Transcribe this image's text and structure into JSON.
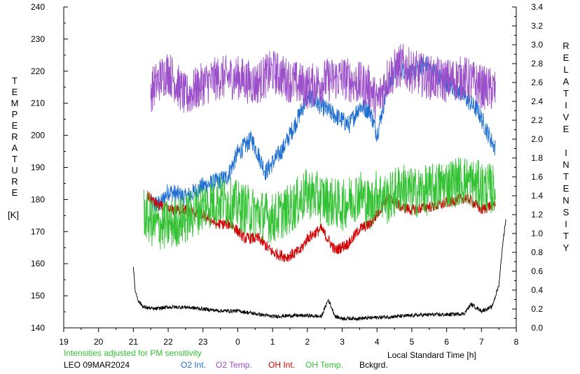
{
  "chart_data": {
    "type": "line",
    "title": "",
    "ylabel_left": "TEMPERATURE",
    "ylabel_left_unit": "[K]",
    "ylabel_right": "RELATIVE INTENSITY",
    "xlabel": "Local Standard Time [h]",
    "note": "Intensities adjusted for PM sensitivity",
    "station_date": "LEO 09MAR2024",
    "x_ticks": [
      "19",
      "20",
      "21",
      "22",
      "23",
      "0",
      "1",
      "2",
      "3",
      "4",
      "5",
      "6",
      "7",
      "8"
    ],
    "xlim": [
      19,
      32
    ],
    "ylim_left": [
      140,
      240
    ],
    "ylim_right": [
      0,
      3.4
    ],
    "y_ticks_left": [
      "140",
      "150",
      "160",
      "170",
      "180",
      "190",
      "200",
      "210",
      "220",
      "230",
      "240"
    ],
    "y_ticks_right": [
      "0.0",
      "0.2",
      "0.4",
      "0.6",
      "0.8",
      "1.0",
      "1.2",
      "1.4",
      "1.6",
      "1.8",
      "2.0",
      "2.2",
      "2.4",
      "2.6",
      "2.8",
      "3.0",
      "3.2",
      "3.4"
    ],
    "grid": false,
    "series": [
      {
        "name": "O2 Int.",
        "axis": "right",
        "color": "#1f6fd0",
        "noise": 0.1,
        "x": [
          21.5,
          21.8,
          22.0,
          22.5,
          23.0,
          23.4,
          23.7,
          24.0,
          24.4,
          24.8,
          25.0,
          25.3,
          25.7,
          26.0,
          26.4,
          26.8,
          27.2,
          27.5,
          27.8,
          28.0,
          28.3,
          28.6,
          29.0,
          29.4,
          29.8,
          30.2,
          30.5,
          30.9,
          31.2,
          31.4
        ],
        "y": [
          1.3,
          1.32,
          1.45,
          1.38,
          1.5,
          1.55,
          1.6,
          1.85,
          2.0,
          1.65,
          1.75,
          1.9,
          2.2,
          2.45,
          2.35,
          2.25,
          2.15,
          2.35,
          2.3,
          2.05,
          2.55,
          2.75,
          2.7,
          2.8,
          2.65,
          2.55,
          2.45,
          2.3,
          2.05,
          1.9
        ]
      },
      {
        "name": "O2 Temp.",
        "axis": "left",
        "color": "#9b4fc9",
        "noise": 7,
        "x": [
          21.5,
          21.8,
          22.0,
          22.5,
          23.0,
          23.5,
          24.0,
          24.5,
          25.0,
          25.5,
          26.0,
          26.5,
          27.0,
          27.5,
          27.8,
          28.0,
          28.3,
          28.7,
          29.0,
          29.5,
          30.0,
          30.5,
          31.0,
          31.4
        ],
        "y": [
          214,
          218,
          220,
          212,
          216,
          218,
          218,
          216,
          220,
          217,
          215,
          217,
          218,
          216,
          215,
          210,
          218,
          222,
          220,
          218,
          217,
          218,
          215,
          214
        ]
      },
      {
        "name": "OH Int.",
        "axis": "right",
        "color": "#d10000",
        "noise": 0.06,
        "x": [
          21.4,
          21.7,
          22.0,
          22.5,
          23.0,
          23.4,
          23.8,
          24.2,
          24.6,
          25.0,
          25.4,
          25.8,
          26.0,
          26.4,
          26.8,
          27.2,
          27.5,
          27.8,
          28.0,
          28.3,
          28.7,
          29.0,
          29.4,
          29.8,
          30.2,
          30.6,
          31.0,
          31.4
        ],
        "y": [
          1.4,
          1.3,
          1.25,
          1.25,
          1.2,
          1.1,
          1.1,
          0.95,
          0.95,
          0.8,
          0.75,
          0.82,
          0.95,
          1.05,
          0.82,
          0.9,
          1.05,
          1.1,
          1.2,
          1.38,
          1.28,
          1.25,
          1.28,
          1.3,
          1.35,
          1.38,
          1.25,
          1.32
        ]
      },
      {
        "name": "OH Temp.",
        "axis": "left",
        "color": "#33c233",
        "noise": 8,
        "x": [
          21.3,
          21.6,
          22.0,
          22.5,
          23.0,
          23.5,
          24.0,
          24.5,
          25.0,
          25.5,
          26.0,
          26.5,
          27.0,
          27.5,
          27.8,
          28.0,
          28.3,
          28.7,
          29.0,
          29.5,
          30.0,
          30.5,
          31.0,
          31.4
        ],
        "y": [
          176,
          172,
          172,
          174,
          178,
          180,
          178,
          176,
          174,
          177,
          182,
          180,
          178,
          182,
          178,
          182,
          180,
          184,
          182,
          183,
          185,
          186,
          184,
          183
        ]
      },
      {
        "name": "Bckgrd.",
        "axis": "right",
        "color": "#000000",
        "noise": 0.02,
        "x": [
          21.0,
          21.05,
          21.15,
          21.3,
          21.6,
          22.0,
          22.5,
          23.0,
          23.5,
          24.0,
          24.5,
          25.0,
          25.5,
          26.0,
          26.4,
          26.6,
          26.8,
          27.0,
          27.5,
          28.0,
          28.5,
          29.0,
          29.5,
          30.0,
          30.5,
          30.7,
          31.0,
          31.3,
          31.5,
          31.6,
          31.7
        ],
        "y": [
          0.65,
          0.4,
          0.28,
          0.22,
          0.2,
          0.22,
          0.22,
          0.2,
          0.18,
          0.18,
          0.15,
          0.12,
          0.13,
          0.13,
          0.12,
          0.3,
          0.12,
          0.1,
          0.1,
          0.11,
          0.12,
          0.13,
          0.14,
          0.14,
          0.15,
          0.25,
          0.18,
          0.22,
          0.45,
          0.85,
          1.15
        ]
      }
    ]
  }
}
